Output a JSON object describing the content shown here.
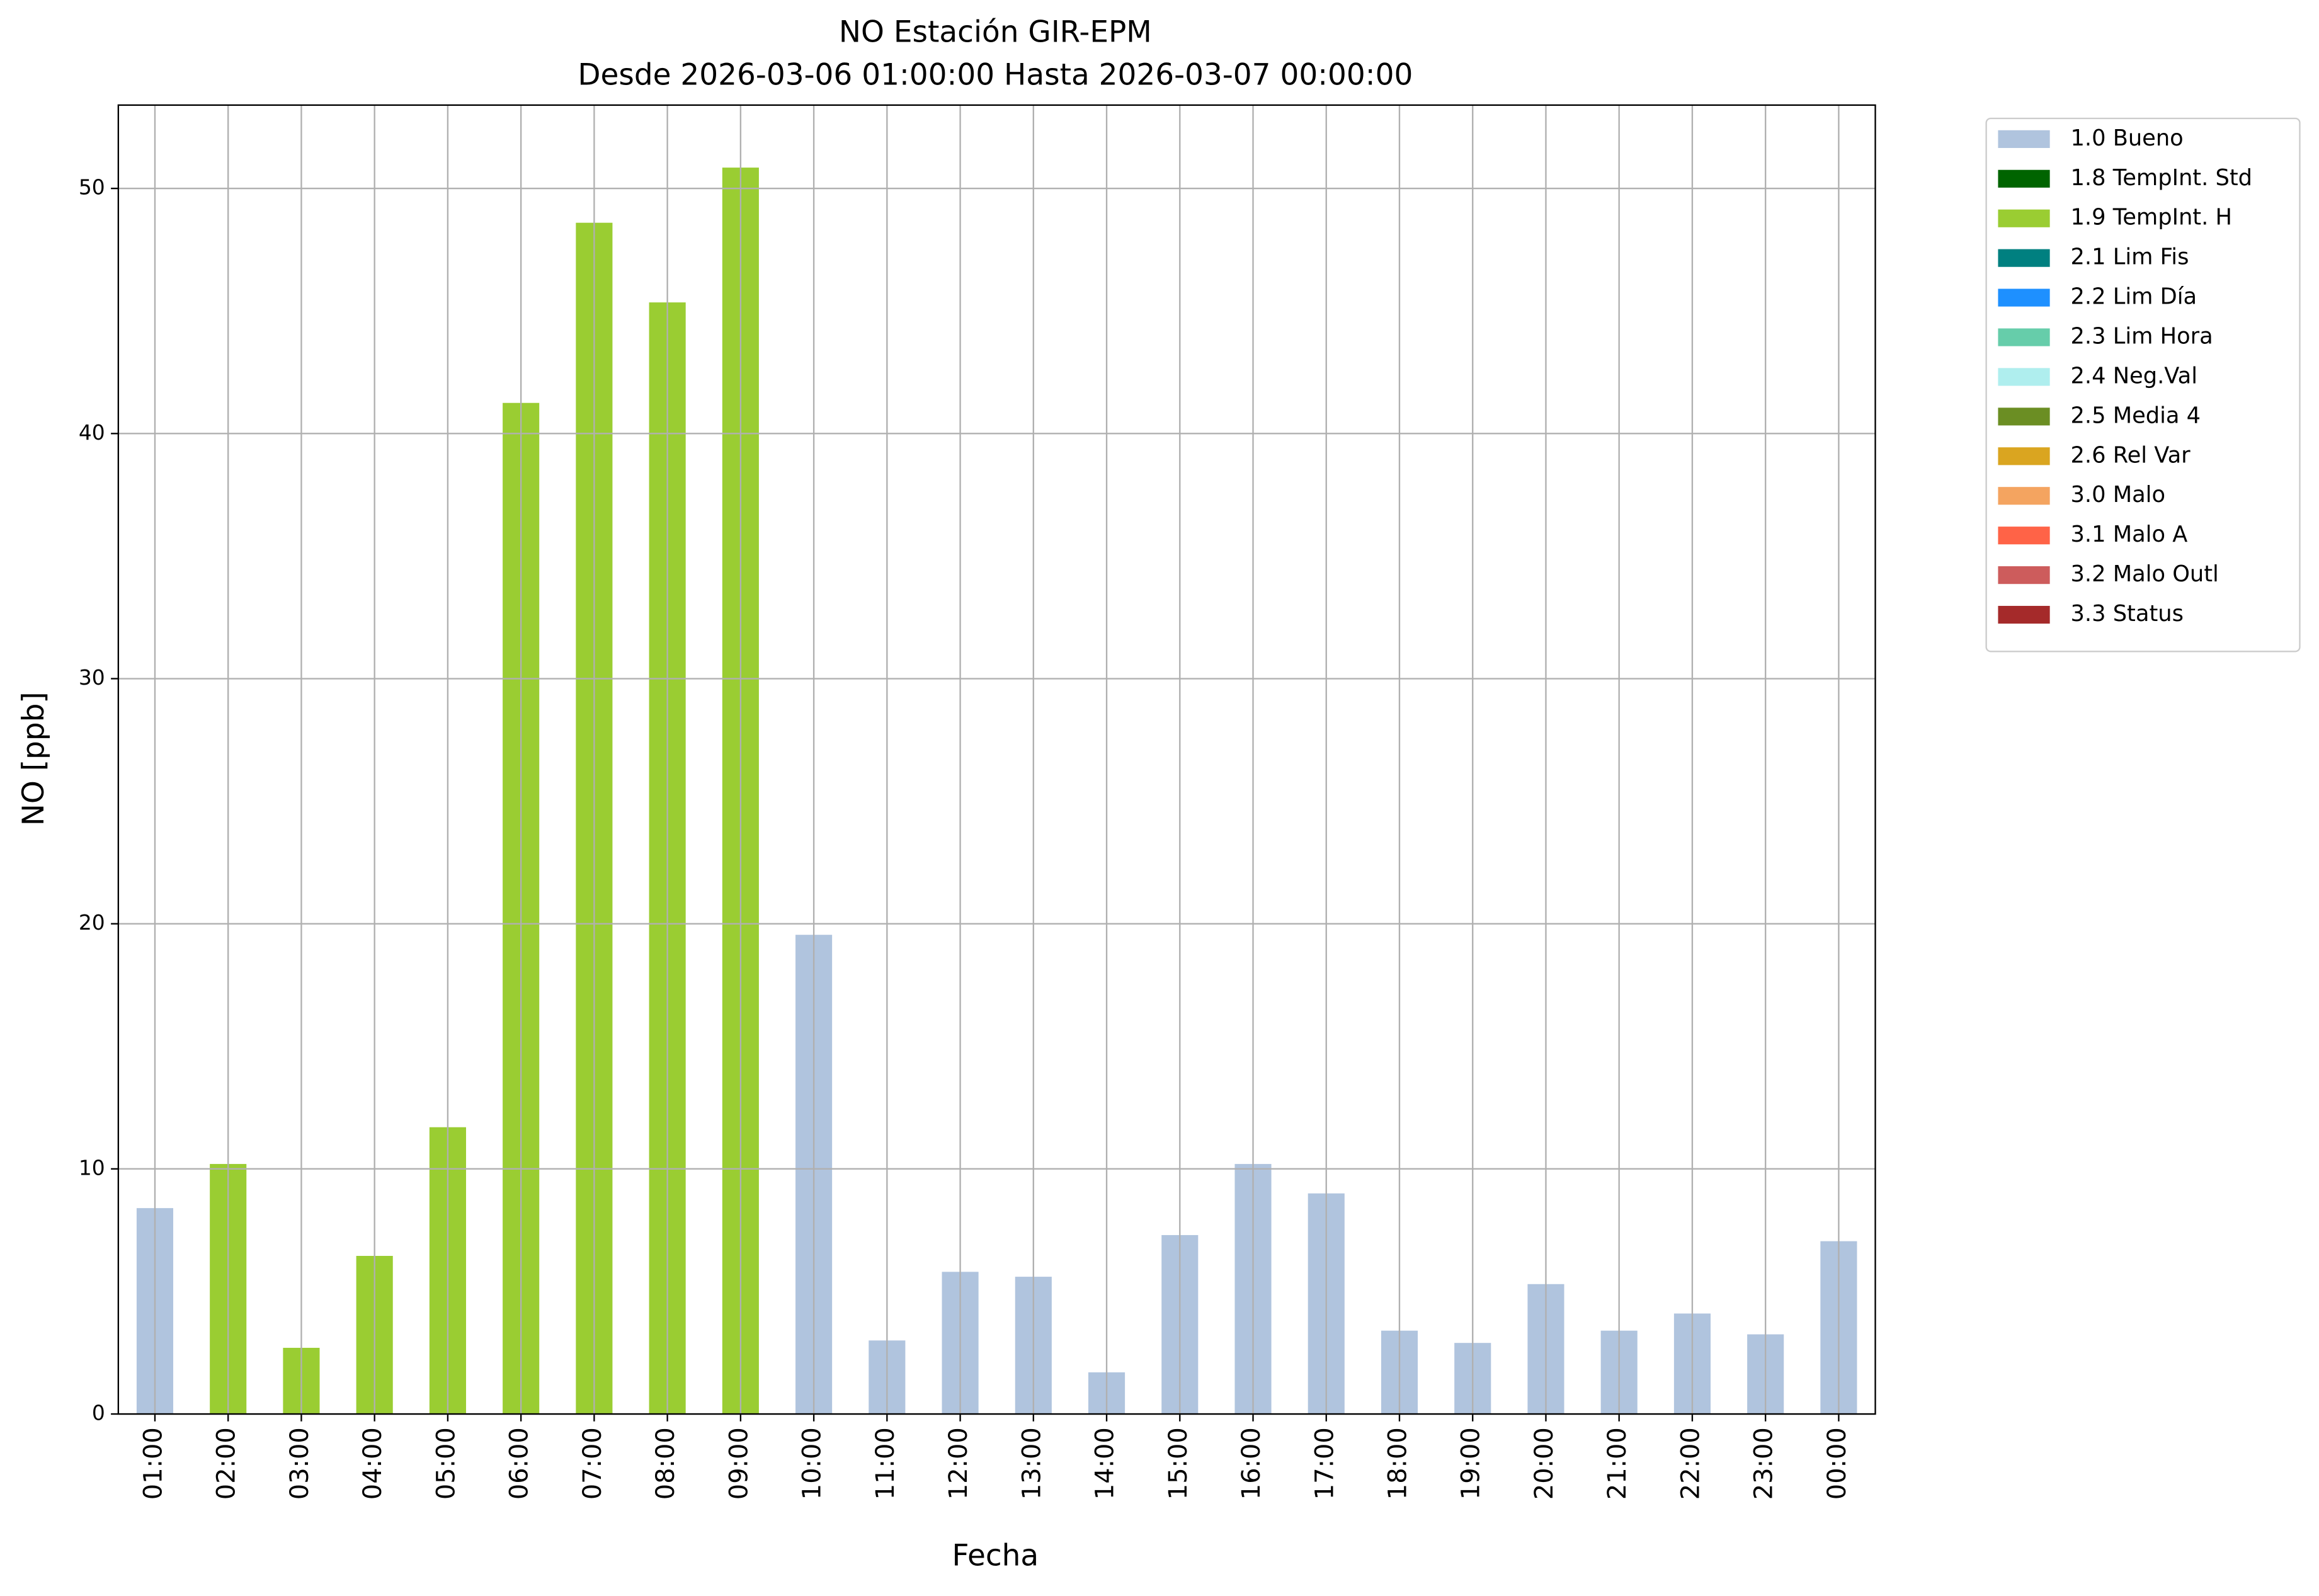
{
  "chart_data": {
    "type": "bar",
    "stacked": true,
    "title": "NO Estación GIR-EPM",
    "subtitle": "Desde 2026-03-06 01:00:00 Hasta 2026-03-07 00:00:00",
    "x_label": "Fecha",
    "y_label": "NO [ppb]",
    "categories": [
      "01:00",
      "02:00",
      "03:00",
      "04:00",
      "05:00",
      "06:00",
      "07:00",
      "08:00",
      "09:00",
      "10:00",
      "11:00",
      "12:00",
      "13:00",
      "14:00",
      "15:00",
      "16:00",
      "17:00",
      "18:00",
      "19:00",
      "20:00",
      "21:00",
      "22:00",
      "23:00",
      "00:00"
    ],
    "series": [
      {
        "name": "1.0 Bueno",
        "color": "#b0c4de",
        "values": [
          8.4,
          null,
          null,
          null,
          null,
          null,
          null,
          null,
          null,
          19.55,
          3.0,
          5.8,
          5.6,
          1.7,
          7.3,
          10.2,
          9.0,
          3.4,
          2.9,
          5.3,
          3.4,
          4.1,
          3.25,
          7.05
        ]
      },
      {
        "name": "1.8 TempInt. Std",
        "color": "#006400",
        "values": [
          null,
          null,
          null,
          null,
          null,
          null,
          null,
          null,
          null,
          null,
          null,
          null,
          null,
          null,
          null,
          null,
          null,
          null,
          null,
          null,
          null,
          null,
          null,
          null
        ]
      },
      {
        "name": "1.9 TempInt. H",
        "color": "#9acd32",
        "values": [
          null,
          10.2,
          2.7,
          6.45,
          11.7,
          41.25,
          48.6,
          45.35,
          50.85,
          null,
          null,
          null,
          null,
          null,
          null,
          null,
          null,
          null,
          null,
          null,
          null,
          null,
          null,
          null
        ]
      },
      {
        "name": "2.1 Lim Fis",
        "color": "#008080",
        "values": [
          null,
          null,
          null,
          null,
          null,
          null,
          null,
          null,
          null,
          null,
          null,
          null,
          null,
          null,
          null,
          null,
          null,
          null,
          null,
          null,
          null,
          null,
          null,
          null
        ]
      },
      {
        "name": "2.2 Lim Día",
        "color": "#1e90ff",
        "values": [
          null,
          null,
          null,
          null,
          null,
          null,
          null,
          null,
          null,
          null,
          null,
          null,
          null,
          null,
          null,
          null,
          null,
          null,
          null,
          null,
          null,
          null,
          null,
          null
        ]
      },
      {
        "name": "2.3 Lim Hora",
        "color": "#66cdaa",
        "values": [
          null,
          null,
          null,
          null,
          null,
          null,
          null,
          null,
          null,
          null,
          null,
          null,
          null,
          null,
          null,
          null,
          null,
          null,
          null,
          null,
          null,
          null,
          null,
          null
        ]
      },
      {
        "name": "2.4 Neg.Val",
        "color": "#afeeee",
        "values": [
          null,
          null,
          null,
          null,
          null,
          null,
          null,
          null,
          null,
          null,
          null,
          null,
          null,
          null,
          null,
          null,
          null,
          null,
          null,
          null,
          null,
          null,
          null,
          null
        ]
      },
      {
        "name": "2.5 Media 4",
        "color": "#6b8e23",
        "values": [
          null,
          null,
          null,
          null,
          null,
          null,
          null,
          null,
          null,
          null,
          null,
          null,
          null,
          null,
          null,
          null,
          null,
          null,
          null,
          null,
          null,
          null,
          null,
          null
        ]
      },
      {
        "name": "2.6 Rel Var",
        "color": "#daa520",
        "values": [
          null,
          null,
          null,
          null,
          null,
          null,
          null,
          null,
          null,
          null,
          null,
          null,
          null,
          null,
          null,
          null,
          null,
          null,
          null,
          null,
          null,
          null,
          null,
          null
        ]
      },
      {
        "name": "3.0 Malo",
        "color": "#f4a460",
        "values": [
          null,
          null,
          null,
          null,
          null,
          null,
          null,
          null,
          null,
          null,
          null,
          null,
          null,
          null,
          null,
          null,
          null,
          null,
          null,
          null,
          null,
          null,
          null,
          null
        ]
      },
      {
        "name": "3.1 Malo A",
        "color": "#ff6347",
        "values": [
          null,
          null,
          null,
          null,
          null,
          null,
          null,
          null,
          null,
          null,
          null,
          null,
          null,
          null,
          null,
          null,
          null,
          null,
          null,
          null,
          null,
          null,
          null,
          null
        ]
      },
      {
        "name": "3.2 Malo Outl",
        "color": "#cd5c5c",
        "values": [
          null,
          null,
          null,
          null,
          null,
          null,
          null,
          null,
          null,
          null,
          null,
          null,
          null,
          null,
          null,
          null,
          null,
          null,
          null,
          null,
          null,
          null,
          null,
          null
        ]
      },
      {
        "name": "3.3 Status",
        "color": "#a52a2a",
        "values": [
          null,
          null,
          null,
          null,
          null,
          null,
          null,
          null,
          null,
          null,
          null,
          null,
          null,
          null,
          null,
          null,
          null,
          null,
          null,
          null,
          null,
          null,
          null,
          null
        ]
      }
    ],
    "ylim": [
      0,
      53.4
    ],
    "yticks": [
      0,
      10,
      20,
      30,
      40,
      50
    ],
    "grid": true,
    "legend": "outside upper right"
  }
}
